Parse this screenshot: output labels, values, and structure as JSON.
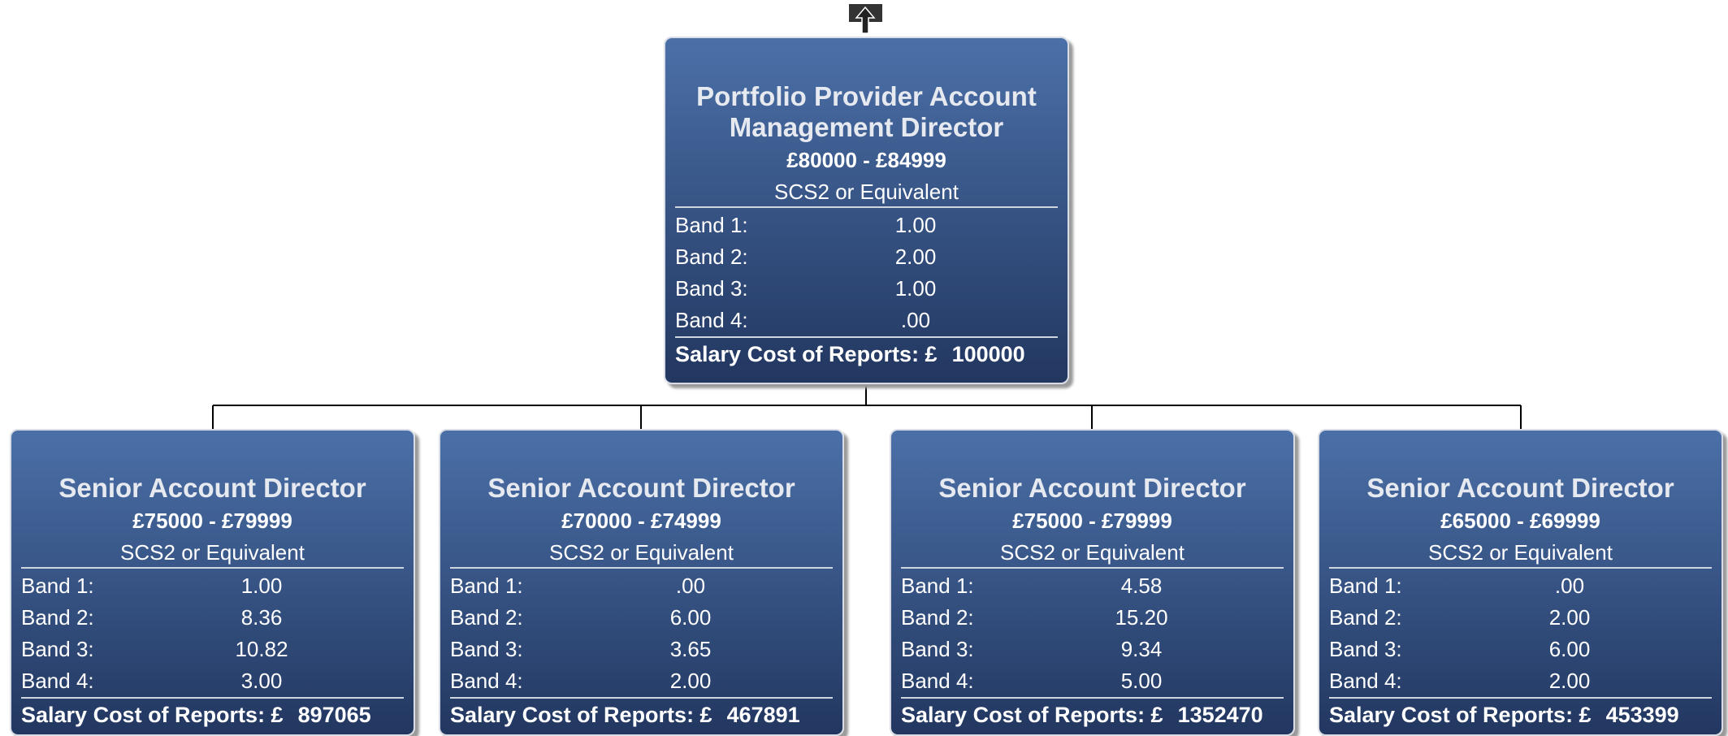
{
  "nodes": [
    {
      "title": "Portfolio Provider Account Management Director",
      "salary": "£80000 - £84999",
      "grade": "SCS2 or Equivalent",
      "bands": [
        {
          "label": "Band 1:",
          "value": "1.00"
        },
        {
          "label": "Band 2:",
          "value": "2.00"
        },
        {
          "label": "Band 3:",
          "value": "1.00"
        },
        {
          "label": "Band 4:",
          "value": ".00"
        }
      ],
      "cost_label": "Salary Cost of Reports: £",
      "cost": "100000"
    },
    {
      "title": "Senior Account Director",
      "salary": "£75000 - £79999",
      "grade": "SCS2 or Equivalent",
      "bands": [
        {
          "label": "Band 1:",
          "value": "1.00"
        },
        {
          "label": "Band 2:",
          "value": "8.36"
        },
        {
          "label": "Band 3:",
          "value": "10.82"
        },
        {
          "label": "Band 4:",
          "value": "3.00"
        }
      ],
      "cost_label": "Salary Cost of Reports: £",
      "cost": "897065"
    },
    {
      "title": "Senior Account Director",
      "salary": "£70000 - £74999",
      "grade": "SCS2 or Equivalent",
      "bands": [
        {
          "label": "Band 1:",
          "value": ".00"
        },
        {
          "label": "Band 2:",
          "value": "6.00"
        },
        {
          "label": "Band 3:",
          "value": "3.65"
        },
        {
          "label": "Band 4:",
          "value": "2.00"
        }
      ],
      "cost_label": "Salary Cost of Reports: £",
      "cost": "467891"
    },
    {
      "title": "Senior Account Director",
      "salary": "£75000 - £79999",
      "grade": "SCS2 or Equivalent",
      "bands": [
        {
          "label": "Band 1:",
          "value": "4.58"
        },
        {
          "label": "Band 2:",
          "value": "15.20"
        },
        {
          "label": "Band 3:",
          "value": "9.34"
        },
        {
          "label": "Band 4:",
          "value": "5.00"
        }
      ],
      "cost_label": "Salary Cost of Reports: £",
      "cost": "1352470"
    },
    {
      "title": "Senior Account Director",
      "salary": "£65000 - £69999",
      "grade": "SCS2 or Equivalent",
      "bands": [
        {
          "label": "Band 1:",
          "value": ".00"
        },
        {
          "label": "Band 2:",
          "value": "2.00"
        },
        {
          "label": "Band 3:",
          "value": "6.00"
        },
        {
          "label": "Band 4:",
          "value": "2.00"
        }
      ],
      "cost_label": "Salary Cost of Reports: £",
      "cost": "453399"
    }
  ]
}
